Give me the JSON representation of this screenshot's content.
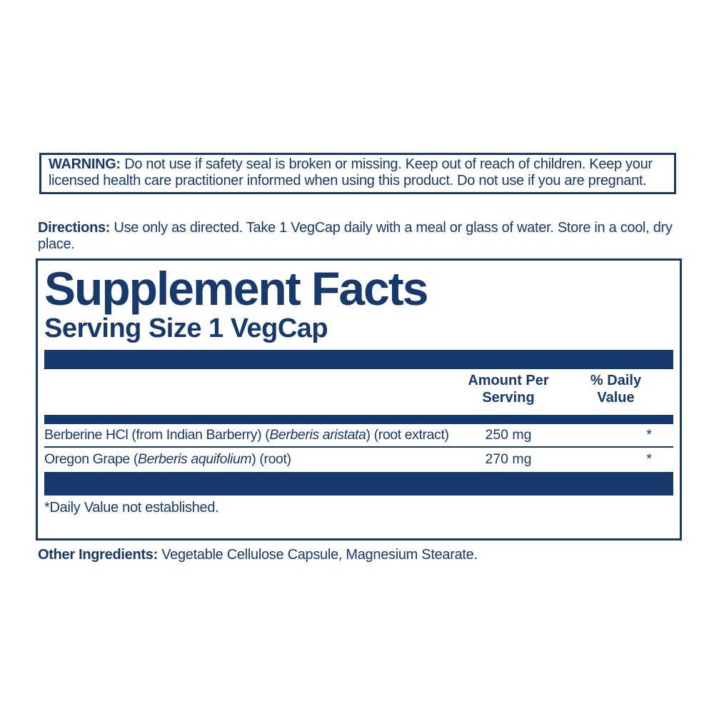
{
  "colors": {
    "navy": "#17396b",
    "background": "#ffffff"
  },
  "warning": {
    "label": "WARNING:",
    "text": "Do not use if safety seal is broken or missing. Keep out of reach of children. Keep your licensed health care practitioner informed when using this product. Do not use if you are pregnant."
  },
  "directions": {
    "label": "Directions:",
    "text": "Use only as directed. Take 1 VegCap daily with a meal or glass of water. Store in a cool, dry place."
  },
  "supplement_facts": {
    "title": "Supplement Facts",
    "serving_size": "Serving Size 1 VegCap",
    "columns": {
      "amount": [
        "Amount Per",
        "Serving"
      ],
      "daily_value": [
        "% Daily",
        "Value"
      ]
    },
    "rows": [
      {
        "name_prefix": "Berberine HCl (from Indian Barberry) (",
        "name_italic": "Berberis aristata",
        "name_suffix": ") (root extract)",
        "amount": "250 mg",
        "daily_value": "*"
      },
      {
        "name_prefix": "Oregon Grape (",
        "name_italic": "Berberis aquifolium",
        "name_suffix": ") (root)",
        "amount": "270 mg",
        "daily_value": "*"
      }
    ],
    "footnote": "*Daily Value not established."
  },
  "other_ingredients": {
    "label": "Other Ingredients:",
    "text": "Vegetable Cellulose Capsule, Magnesium Stearate."
  }
}
